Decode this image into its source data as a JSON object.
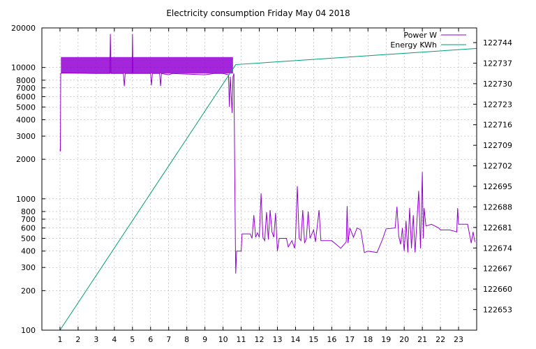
{
  "chart_data": {
    "type": "line",
    "title": "Electricity consumption Friday May 04 2018",
    "x_axis": {
      "range": [
        0,
        24
      ],
      "ticks": [
        1,
        2,
        3,
        4,
        5,
        6,
        7,
        8,
        9,
        10,
        11,
        12,
        13,
        14,
        15,
        16,
        17,
        18,
        19,
        20,
        21,
        22,
        23
      ],
      "tick_labels": [
        "1",
        "2",
        "3",
        "4",
        "5",
        "6",
        "7",
        "8",
        "9",
        "10",
        "11",
        "12",
        "13",
        "14",
        "15",
        "16",
        "17",
        "18",
        "19",
        "20",
        "21",
        "22",
        "23"
      ]
    },
    "y_axis_left": {
      "scale": "log",
      "range": [
        100,
        20000
      ],
      "ticks": [
        100,
        200,
        300,
        400,
        500,
        600,
        700,
        800,
        1000,
        2000,
        3000,
        4000,
        5000,
        6000,
        7000,
        8000,
        10000,
        20000
      ],
      "tick_labels": [
        "100",
        "200",
        "300",
        "400",
        "500",
        "600",
        "700",
        "800",
        "1000",
        "2000",
        "3000",
        "4000",
        "5000",
        "6000",
        "7000",
        "8000",
        "10000",
        "20000"
      ]
    },
    "y_axis_right": {
      "scale": "linear",
      "range": [
        122646,
        122749
      ],
      "ticks": [
        122653,
        122660,
        122667,
        122674,
        122681,
        122688,
        122695,
        122702,
        122709,
        122716,
        122723,
        122730,
        122737,
        122744
      ],
      "tick_labels": [
        "122653",
        "122660",
        "122667",
        "122674",
        "122681",
        "122688",
        "122695",
        "122702",
        "122709",
        "122716",
        "122723",
        "122730",
        "122737",
        "122744"
      ]
    },
    "grid": true,
    "legend_position": "top-right",
    "series": [
      {
        "name": "Power W",
        "axis": "left",
        "color": "#9400d3",
        "band": {
          "x_start": 1.05,
          "x_end": 10.55,
          "low": 9000,
          "high": 12000
        },
        "points": [
          [
            1.0,
            2400
          ],
          [
            1.02,
            2300
          ],
          [
            1.04,
            9000
          ],
          [
            1.1,
            9100
          ],
          [
            2.0,
            9050
          ],
          [
            3.0,
            9000
          ],
          [
            3.75,
            9000
          ],
          [
            3.78,
            18000
          ],
          [
            3.82,
            9000
          ],
          [
            4.5,
            9000
          ],
          [
            4.55,
            7200
          ],
          [
            4.6,
            9000
          ],
          [
            4.98,
            9000
          ],
          [
            5.0,
            18000
          ],
          [
            5.03,
            9000
          ],
          [
            6.0,
            9000
          ],
          [
            6.05,
            7300
          ],
          [
            6.1,
            9000
          ],
          [
            6.5,
            9000
          ],
          [
            6.55,
            7200
          ],
          [
            6.6,
            9000
          ],
          [
            7.0,
            8800
          ],
          [
            7.2,
            9000
          ],
          [
            8.0,
            8900
          ],
          [
            9.0,
            8800
          ],
          [
            9.5,
            9000
          ],
          [
            10.0,
            9000
          ],
          [
            10.3,
            8800
          ],
          [
            10.35,
            5000
          ],
          [
            10.4,
            8500
          ],
          [
            10.5,
            4500
          ],
          [
            10.55,
            8500
          ],
          [
            10.6,
            9000
          ],
          [
            10.65,
            1300
          ],
          [
            10.7,
            270
          ],
          [
            10.75,
            400
          ],
          [
            11.0,
            400
          ],
          [
            11.05,
            540
          ],
          [
            11.5,
            540
          ],
          [
            11.6,
            500
          ],
          [
            11.7,
            750
          ],
          [
            11.8,
            510
          ],
          [
            11.9,
            550
          ],
          [
            12.0,
            510
          ],
          [
            12.1,
            1100
          ],
          [
            12.2,
            510
          ],
          [
            12.3,
            480
          ],
          [
            12.4,
            790
          ],
          [
            12.5,
            490
          ],
          [
            12.6,
            820
          ],
          [
            12.7,
            560
          ],
          [
            12.8,
            510
          ],
          [
            12.9,
            780
          ],
          [
            13.0,
            400
          ],
          [
            13.1,
            500
          ],
          [
            13.5,
            500
          ],
          [
            13.6,
            430
          ],
          [
            13.8,
            480
          ],
          [
            13.95,
            420
          ],
          [
            14.0,
            500
          ],
          [
            14.1,
            1250
          ],
          [
            14.2,
            500
          ],
          [
            14.3,
            480
          ],
          [
            14.4,
            820
          ],
          [
            14.5,
            460
          ],
          [
            14.6,
            500
          ],
          [
            14.7,
            800
          ],
          [
            14.8,
            500
          ],
          [
            15.0,
            580
          ],
          [
            15.1,
            470
          ],
          [
            15.3,
            820
          ],
          [
            15.4,
            480
          ],
          [
            16.0,
            480
          ],
          [
            16.5,
            420
          ],
          [
            16.8,
            470
          ],
          [
            16.85,
            880
          ],
          [
            16.9,
            460
          ],
          [
            17.0,
            600
          ],
          [
            17.2,
            510
          ],
          [
            17.4,
            600
          ],
          [
            17.6,
            580
          ],
          [
            17.8,
            390
          ],
          [
            18.0,
            400
          ],
          [
            18.5,
            390
          ],
          [
            18.8,
            490
          ],
          [
            19.0,
            590
          ],
          [
            19.5,
            600
          ],
          [
            19.6,
            870
          ],
          [
            19.7,
            520
          ],
          [
            19.8,
            450
          ],
          [
            19.9,
            600
          ],
          [
            20.0,
            400
          ],
          [
            20.1,
            680
          ],
          [
            20.2,
            390
          ],
          [
            20.3,
            850
          ],
          [
            20.4,
            420
          ],
          [
            20.5,
            750
          ],
          [
            20.6,
            390
          ],
          [
            20.8,
            1150
          ],
          [
            20.9,
            420
          ],
          [
            21.0,
            1600
          ],
          [
            21.05,
            500
          ],
          [
            21.1,
            850
          ],
          [
            21.2,
            620
          ],
          [
            21.5,
            640
          ],
          [
            21.9,
            600
          ],
          [
            22.0,
            580
          ],
          [
            22.5,
            580
          ],
          [
            22.9,
            560
          ],
          [
            22.95,
            850
          ],
          [
            23.0,
            640
          ],
          [
            23.5,
            640
          ],
          [
            23.7,
            460
          ],
          [
            23.8,
            560
          ],
          [
            23.9,
            470
          ]
        ]
      },
      {
        "name": "Energy KWh",
        "axis": "right",
        "color": "#009e73",
        "points": [
          [
            1.0,
            122646
          ],
          [
            10.7,
            122736.5
          ],
          [
            24.0,
            122742
          ]
        ]
      }
    ]
  }
}
